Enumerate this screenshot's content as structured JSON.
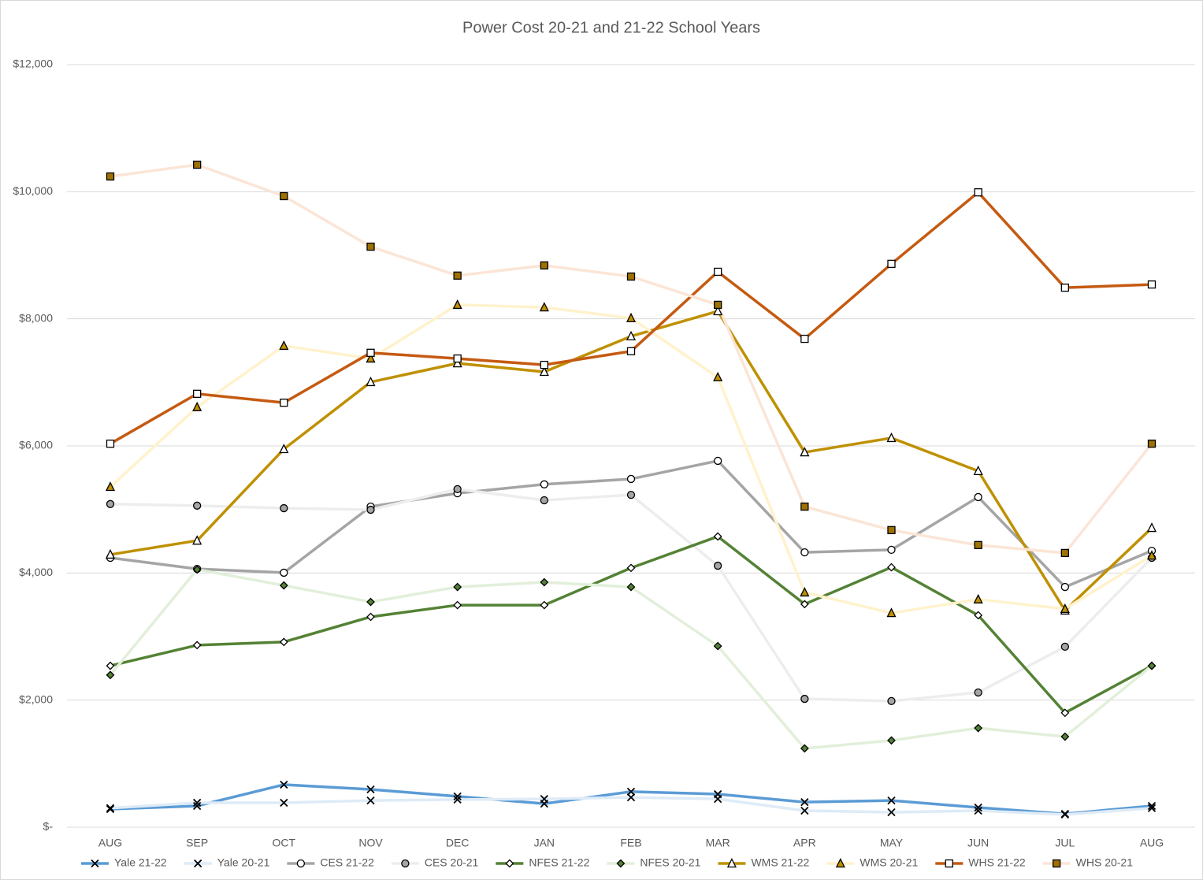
{
  "chart_data": {
    "type": "line",
    "title": "Power Cost 20-21 and 21-22 School Years",
    "categories": [
      "AUG",
      "SEP",
      "OCT",
      "NOV",
      "DEC",
      "JAN",
      "FEB",
      "MAR",
      "APR",
      "MAY",
      "JUN",
      "JUL",
      "AUG"
    ],
    "ylim": [
      0,
      12000
    ],
    "yticks": [
      {
        "value": 0,
        "label": "$-"
      },
      {
        "value": 2000,
        "label": "$2,000"
      },
      {
        "value": 4000,
        "label": "$4,000"
      },
      {
        "value": 6000,
        "label": "$6,000"
      },
      {
        "value": 8000,
        "label": "$8,000"
      },
      {
        "value": 10000,
        "label": "$10,000"
      },
      {
        "value": 12000,
        "label": "$12,000"
      }
    ],
    "grid": true,
    "legend": "bottom",
    "series": [
      {
        "name": "Yale 21-22",
        "color": "#5b9bd5",
        "marker": "x",
        "marker_fill": "#000000",
        "values": [
          285,
          335,
          670,
          595,
          485,
          370,
          560,
          520,
          395,
          420,
          310,
          210,
          335
        ]
      },
      {
        "name": "Yale 20-21",
        "color": "#deebf7",
        "marker": "x",
        "marker_fill": "#000000",
        "values": [
          300,
          385,
          385,
          420,
          435,
          445,
          470,
          445,
          260,
          235,
          260,
          200,
          300
        ]
      },
      {
        "name": "CES 21-22",
        "color": "#a5a5a5",
        "marker": "circle",
        "marker_fill": "#ffffff",
        "values": [
          4240,
          4065,
          4005,
          5045,
          5255,
          5395,
          5480,
          5765,
          4325,
          4365,
          5195,
          3780,
          4350
        ]
      },
      {
        "name": "CES 20-21",
        "color": "#ededed",
        "marker": "circle",
        "marker_fill": "#a5a5a5",
        "values": [
          5085,
          5060,
          5020,
          4995,
          5320,
          5145,
          5230,
          4115,
          2020,
          1985,
          2120,
          2840,
          4240
        ]
      },
      {
        "name": "NFES 21-22",
        "color": "#548235",
        "marker": "diamond",
        "marker_fill": "#ffffff",
        "values": [
          2540,
          2865,
          2915,
          3310,
          3495,
          3495,
          4080,
          4575,
          3510,
          4090,
          3335,
          1800,
          2540
        ]
      },
      {
        "name": "NFES 20-21",
        "color": "#e2efda",
        "marker": "diamond",
        "marker_fill": "#548235",
        "values": [
          2395,
          4055,
          3805,
          3545,
          3780,
          3855,
          3780,
          2850,
          1240,
          1365,
          1560,
          1425,
          2540
        ]
      },
      {
        "name": "WMS 21-22",
        "color": "#bf9000",
        "marker": "triangle",
        "marker_fill": "#ffffff",
        "values": [
          4290,
          4510,
          5950,
          7005,
          7300,
          7165,
          7725,
          8120,
          5900,
          6125,
          5605,
          3410,
          4710
        ]
      },
      {
        "name": "WMS 20-21",
        "color": "#fff2cc",
        "marker": "triangle",
        "marker_fill": "#bf9000",
        "values": [
          5355,
          6610,
          7575,
          7375,
          8220,
          8180,
          8010,
          7080,
          3695,
          3370,
          3585,
          3435,
          4275
        ]
      },
      {
        "name": "WHS 21-22",
        "color": "#c55a11",
        "marker": "square",
        "marker_fill": "#ffffff",
        "values": [
          6035,
          6820,
          6680,
          7465,
          7375,
          7275,
          7490,
          8740,
          7685,
          8865,
          9990,
          8490,
          8540
        ]
      },
      {
        "name": "WHS 20-21",
        "color": "#fbe5d6",
        "marker": "square",
        "marker_fill": "#9e7100",
        "values": [
          10240,
          10425,
          9930,
          9135,
          8680,
          8840,
          8665,
          8220,
          5045,
          4675,
          4440,
          4315,
          6035
        ]
      }
    ]
  }
}
